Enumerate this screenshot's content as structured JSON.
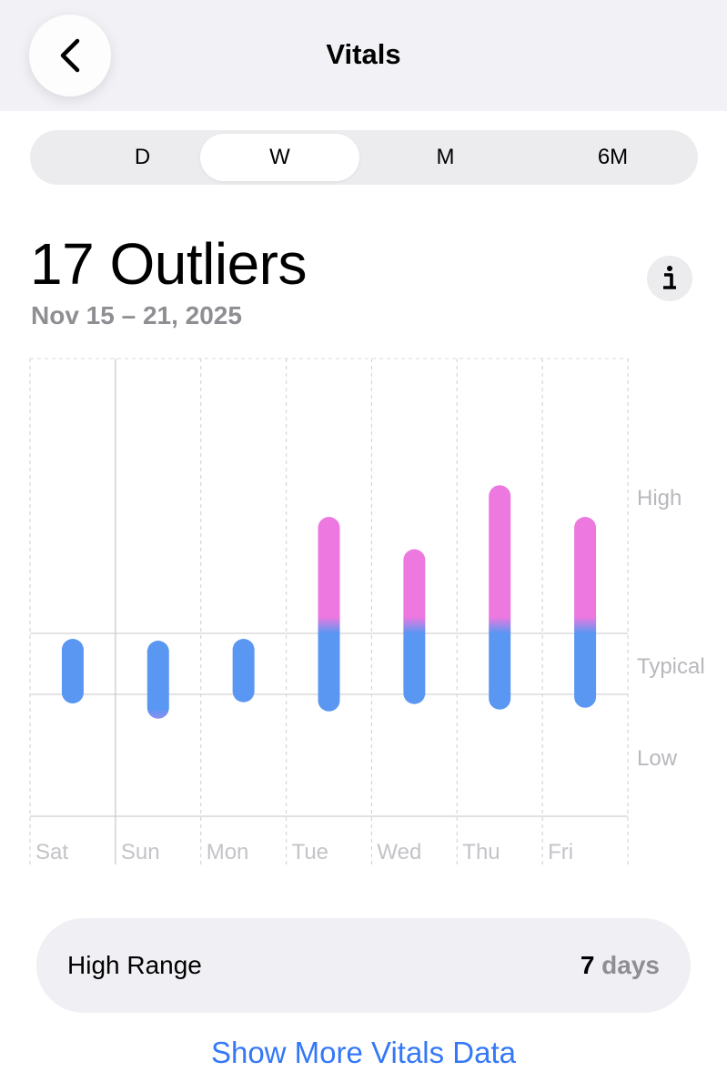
{
  "header": {
    "title": "Vitals",
    "back_icon": "chevron-left-icon"
  },
  "segments": [
    {
      "label": "D",
      "active": false
    },
    {
      "label": "W",
      "active": true
    },
    {
      "label": "M",
      "active": false
    },
    {
      "label": "6M",
      "active": false
    }
  ],
  "summary": {
    "count": "17",
    "count_label": "Outliers",
    "title": "17 Outliers",
    "date_range": "Nov 15 – 21, 2025",
    "info_icon": "info-icon"
  },
  "chart_data": {
    "type": "bar",
    "categories": [
      "Sat",
      "Sun",
      "Mon",
      "Tue",
      "Wed",
      "Thu",
      "Fri"
    ],
    "zones": [
      "High",
      "Typical",
      "Low"
    ],
    "ranges": [
      {
        "day": "Sat",
        "top": 0.91,
        "bottom": -0.15
      },
      {
        "day": "Sun",
        "top": 0.88,
        "bottom": -0.4
      },
      {
        "day": "Mon",
        "top": 0.91,
        "bottom": -0.13
      },
      {
        "day": "Tue",
        "top": 2.91,
        "bottom": -0.28
      },
      {
        "day": "Wed",
        "top": 2.38,
        "bottom": -0.16
      },
      {
        "day": "Thu",
        "top": 3.43,
        "bottom": -0.25
      },
      {
        "day": "Fri",
        "top": 2.91,
        "bottom": -0.22
      }
    ],
    "colors": {
      "typical": "#5a97f2",
      "high": "#ec78e0"
    }
  },
  "high_range": {
    "label": "High Range",
    "value": "7",
    "unit": "days"
  },
  "more_link": "Show More Vitals Data"
}
